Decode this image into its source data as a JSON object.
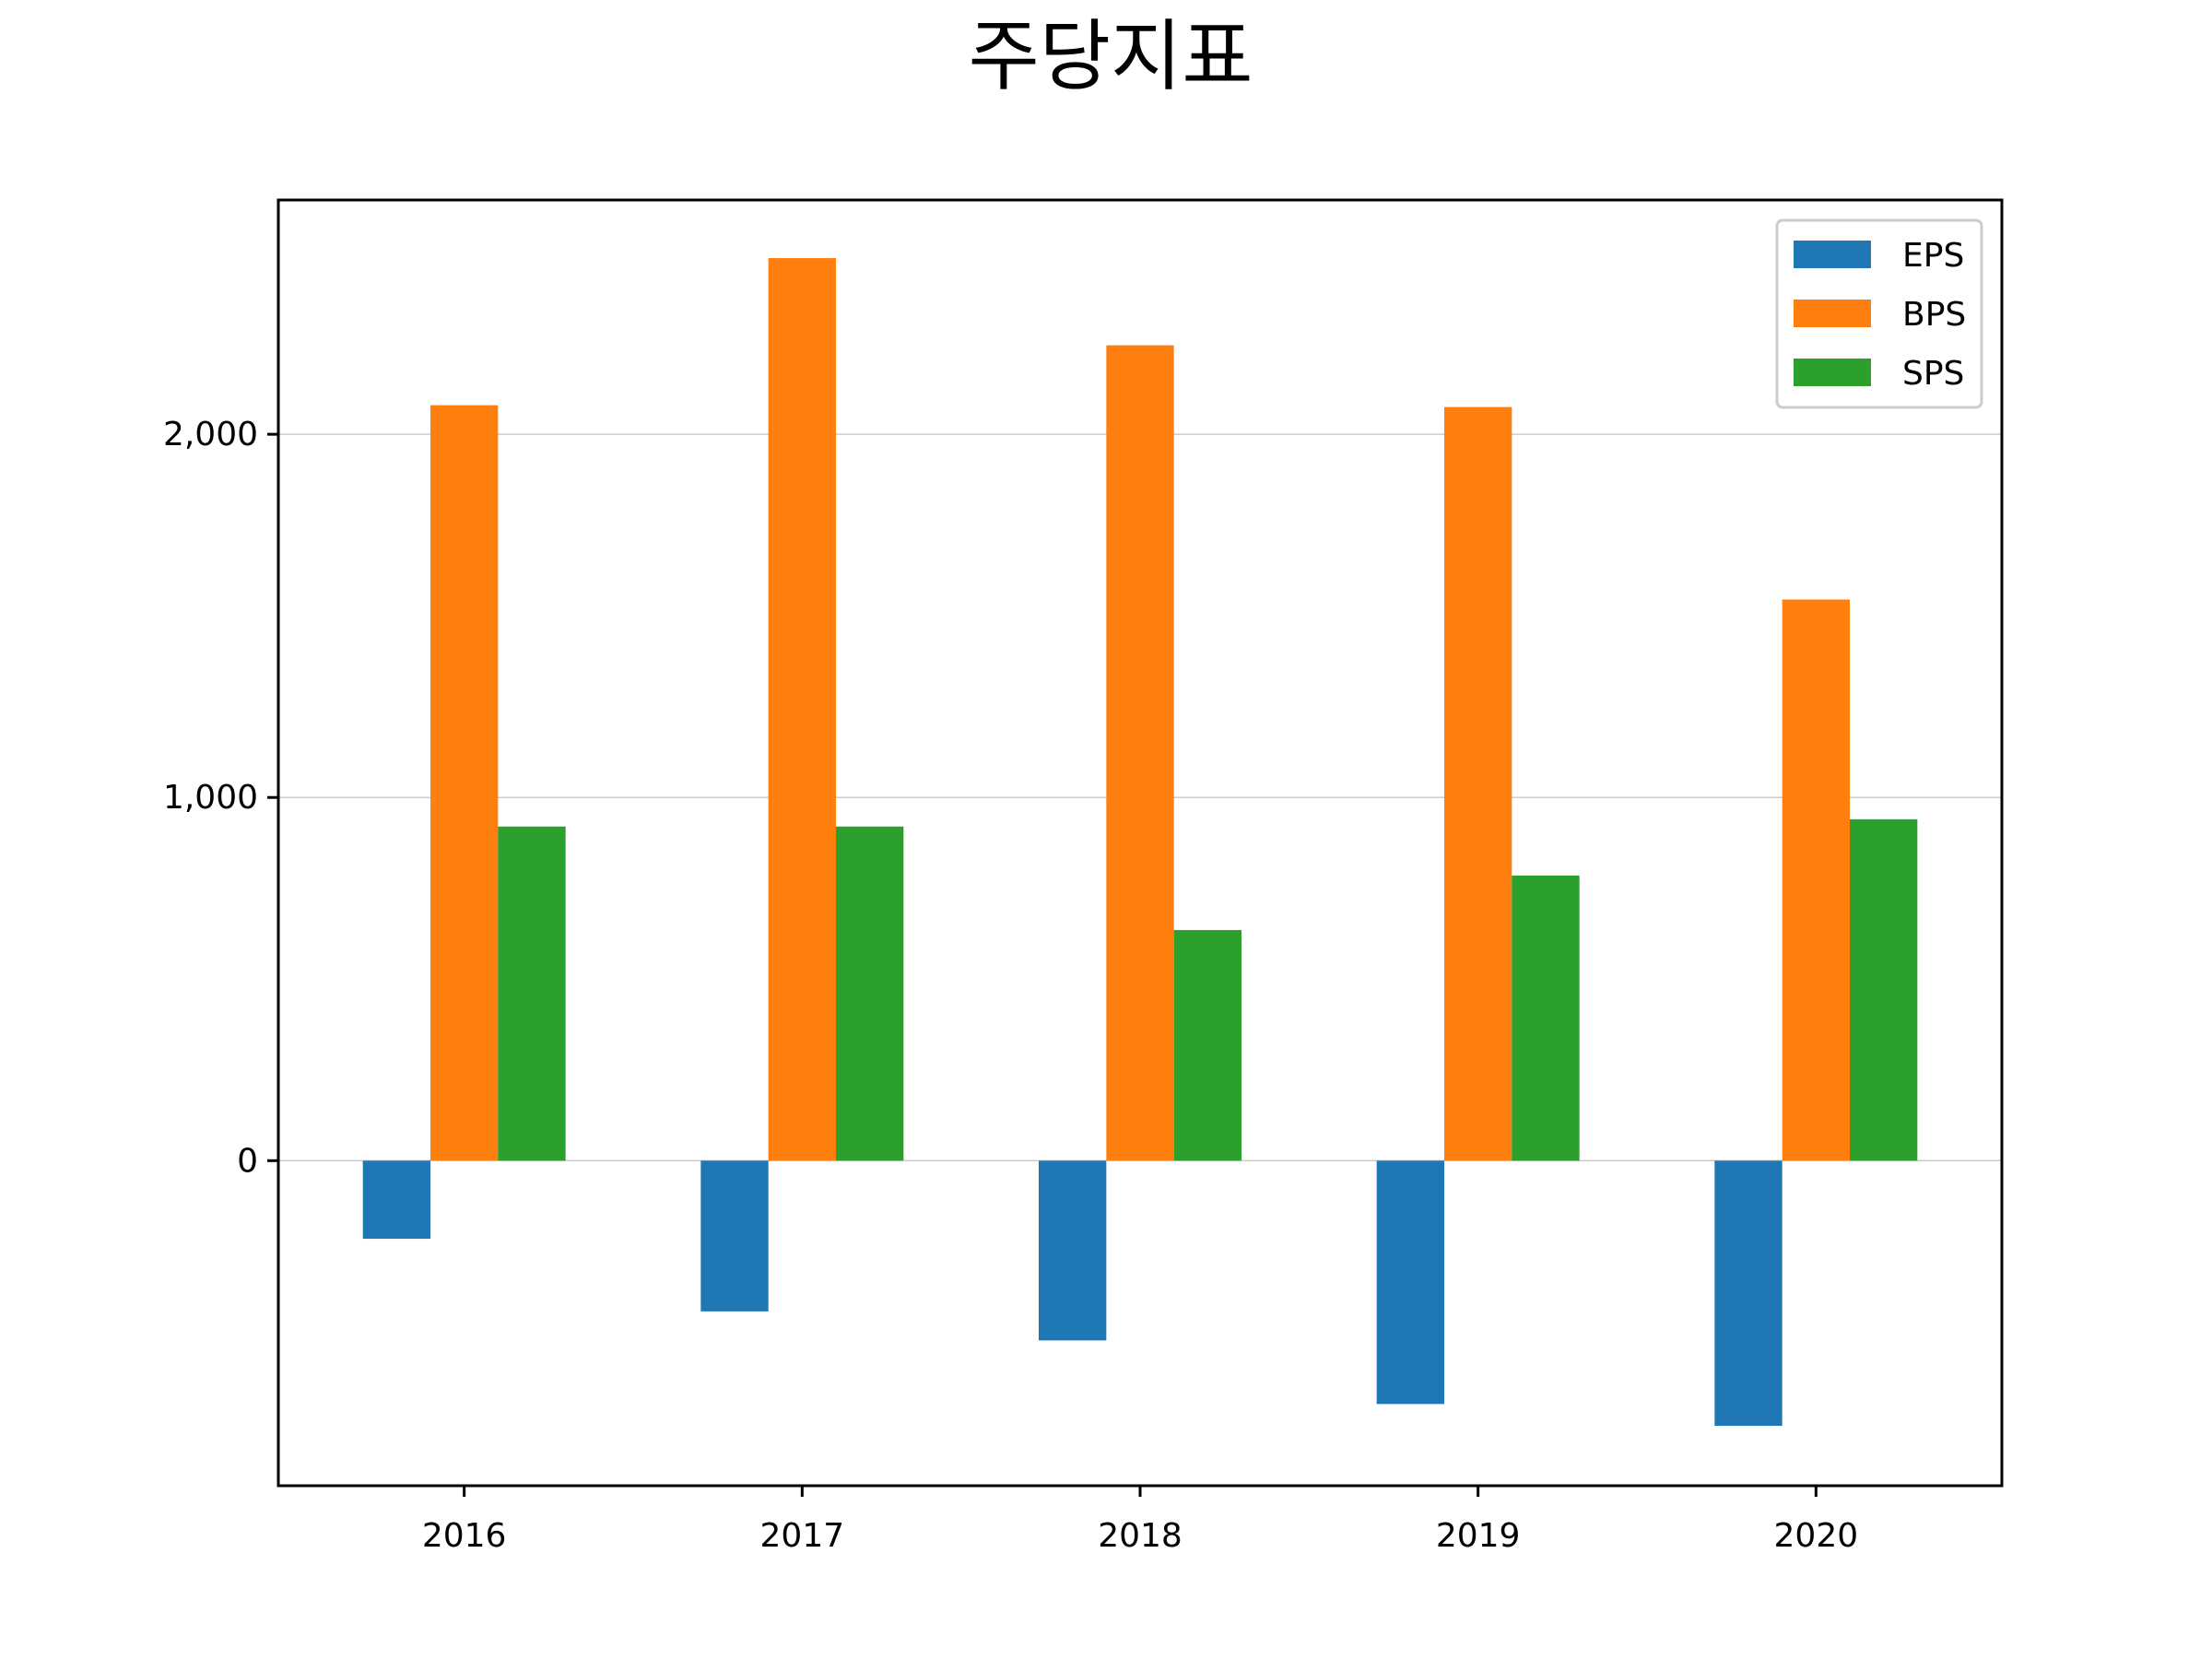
{
  "chart_data": {
    "type": "bar",
    "title": "주당지표",
    "xlabel": "",
    "ylabel": "",
    "categories": [
      "2016",
      "2017",
      "2018",
      "2019",
      "2020"
    ],
    "series": [
      {
        "name": "EPS",
        "color": "#1f77b4",
        "values": [
          -215,
          -415,
          -495,
          -670,
          -730
        ]
      },
      {
        "name": "BPS",
        "color": "#ff7f0e",
        "values": [
          2080,
          2485,
          2245,
          2075,
          1545
        ]
      },
      {
        "name": "SPS",
        "color": "#2ca02c",
        "values": [
          920,
          920,
          635,
          785,
          940
        ]
      }
    ],
    "ylim": [
      -895,
      2645
    ],
    "yticks": [
      0,
      1000,
      2000
    ],
    "ytick_labels": [
      "0",
      "1,000",
      "2,000"
    ],
    "grid": "y",
    "legend": "upper right"
  }
}
